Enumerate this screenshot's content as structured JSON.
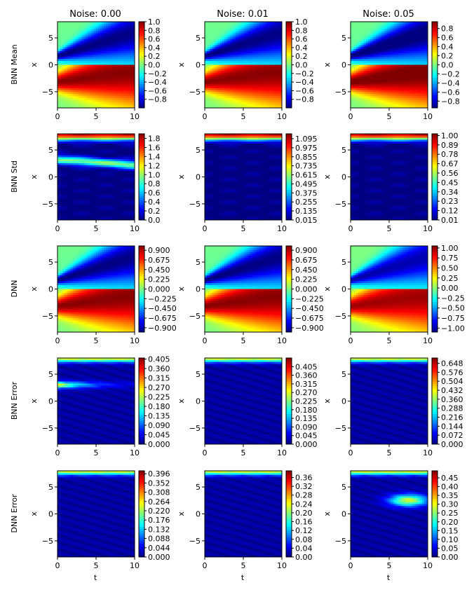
{
  "figure": {
    "column_titles": [
      "Noise: 0.00",
      "Noise: 0.01",
      "Noise: 0.05"
    ],
    "row_labels": [
      "BNN Mean",
      "BNN Std",
      "DNN",
      "BNN Error",
      "DNN Error"
    ],
    "xlabel": "t",
    "ylabel": "x"
  },
  "chart_data": {
    "type": "heatmap",
    "colormap": "jet",
    "x_axis": {
      "label": "t",
      "range": [
        0,
        10
      ],
      "ticks": [
        "0",
        "5",
        "10"
      ]
    },
    "y_axis": {
      "label": "x",
      "range": [
        -8,
        8
      ],
      "ticks": [
        "5",
        "0",
        "−5"
      ]
    },
    "panels": [
      {
        "row": "BNN Mean",
        "noise": "0.00",
        "field": "mean",
        "vmin": -1.0,
        "vmax": 1.0,
        "colorbar_ticks": [
          "1.0",
          "0.8",
          "0.6",
          "0.4",
          "0.2",
          "0.0",
          "−0.2",
          "−0.4",
          "−0.6",
          "−0.8"
        ]
      },
      {
        "row": "BNN Mean",
        "noise": "0.01",
        "field": "mean",
        "vmin": -1.0,
        "vmax": 1.0,
        "colorbar_ticks": [
          "1.0",
          "0.8",
          "0.6",
          "0.4",
          "0.2",
          "0.0",
          "−0.2",
          "−0.4",
          "−0.6",
          "−0.8"
        ]
      },
      {
        "row": "BNN Mean",
        "noise": "0.05",
        "field": "mean",
        "vmin": -0.95,
        "vmax": 0.95,
        "colorbar_ticks": [
          "0.8",
          "0.6",
          "0.4",
          "0.2",
          "0.0",
          "−0.2",
          "−0.4",
          "−0.6",
          "−0.8"
        ]
      },
      {
        "row": "BNN Std",
        "noise": "0.00",
        "field": "std",
        "vmin": 0.0,
        "vmax": 1.9,
        "colorbar_ticks": [
          "1.8",
          "1.6",
          "1.4",
          "1.2",
          "1.0",
          "0.8",
          "0.6",
          "0.4",
          "0.2",
          "0.0"
        ]
      },
      {
        "row": "BNN Std",
        "noise": "0.01",
        "field": "std",
        "vmin": 0.015,
        "vmax": 1.16,
        "colorbar_ticks": [
          "1.095",
          "0.975",
          "0.855",
          "0.735",
          "0.615",
          "0.495",
          "0.375",
          "0.255",
          "0.135",
          "0.015"
        ]
      },
      {
        "row": "BNN Std",
        "noise": "0.05",
        "field": "std",
        "vmin": 0.01,
        "vmax": 1.02,
        "colorbar_ticks": [
          "1.00",
          "0.89",
          "0.78",
          "0.67",
          "0.56",
          "0.45",
          "0.34",
          "0.23",
          "0.12",
          "0.01"
        ]
      },
      {
        "row": "DNN",
        "noise": "0.00",
        "field": "mean",
        "vmin": -1.0,
        "vmax": 1.0,
        "colorbar_ticks": [
          "0.900",
          "0.675",
          "0.450",
          "0.225",
          "0.000",
          "−0.225",
          "−0.450",
          "−0.675",
          "−0.900"
        ]
      },
      {
        "row": "DNN",
        "noise": "0.01",
        "field": "mean",
        "vmin": -1.0,
        "vmax": 1.0,
        "colorbar_ticks": [
          "0.900",
          "0.675",
          "0.450",
          "0.225",
          "0.000",
          "−0.225",
          "−0.450",
          "−0.675",
          "−0.900"
        ]
      },
      {
        "row": "DNN",
        "noise": "0.05",
        "field": "mean",
        "vmin": -1.1,
        "vmax": 1.05,
        "colorbar_ticks": [
          "1.00",
          "0.75",
          "0.50",
          "0.25",
          "0.00",
          "−0.25",
          "−0.50",
          "−0.75",
          "−1.00"
        ]
      },
      {
        "row": "BNN Error",
        "noise": "0.00",
        "field": "err",
        "vmin": 0.0,
        "vmax": 0.41,
        "colorbar_ticks": [
          "0.405",
          "0.360",
          "0.315",
          "0.270",
          "0.225",
          "0.180",
          "0.135",
          "0.090",
          "0.045",
          "0.000"
        ]
      },
      {
        "row": "BNN Error",
        "noise": "0.01",
        "field": "err",
        "vmin": 0.0,
        "vmax": 0.45,
        "colorbar_ticks": [
          "0.405",
          "0.360",
          "0.315",
          "0.270",
          "0.225",
          "0.180",
          "0.135",
          "0.090",
          "0.045",
          "0.000"
        ]
      },
      {
        "row": "BNN Error",
        "noise": "0.05",
        "field": "err",
        "vmin": 0.0,
        "vmax": 0.69,
        "colorbar_ticks": [
          "0.648",
          "0.576",
          "0.504",
          "0.432",
          "0.360",
          "0.288",
          "0.216",
          "0.144",
          "0.072",
          "0.000"
        ]
      },
      {
        "row": "DNN Error",
        "noise": "0.00",
        "field": "err",
        "vmin": 0.0,
        "vmax": 0.41,
        "colorbar_ticks": [
          "0.396",
          "0.352",
          "0.308",
          "0.264",
          "0.220",
          "0.176",
          "0.132",
          "0.088",
          "0.044",
          "0.000"
        ]
      },
      {
        "row": "DNN Error",
        "noise": "0.01",
        "field": "err",
        "vmin": 0.0,
        "vmax": 0.39,
        "colorbar_ticks": [
          "0.36",
          "0.32",
          "0.28",
          "0.24",
          "0.20",
          "0.16",
          "0.12",
          "0.08",
          "0.04",
          "0.00"
        ]
      },
      {
        "row": "DNN Error",
        "noise": "0.05",
        "field": "err",
        "vmin": 0.0,
        "vmax": 0.49,
        "colorbar_ticks": [
          "0.45",
          "0.40",
          "0.35",
          "0.30",
          "0.25",
          "0.20",
          "0.15",
          "0.10",
          "0.05",
          "0.00"
        ]
      }
    ]
  }
}
